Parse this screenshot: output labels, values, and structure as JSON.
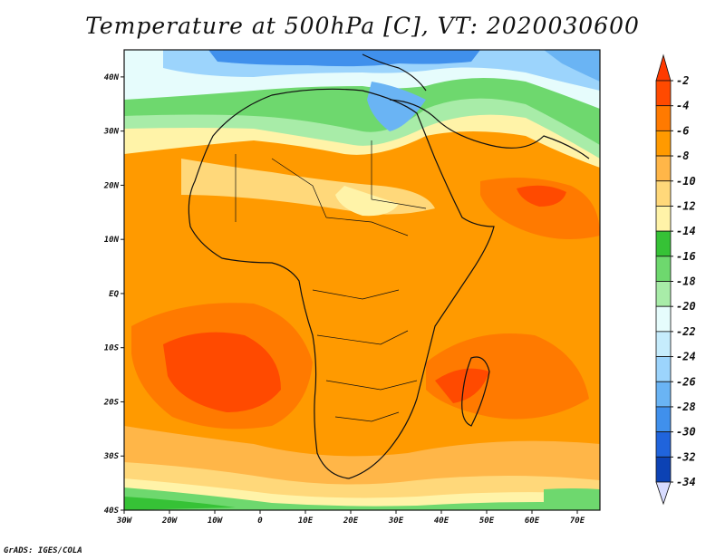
{
  "title": "Temperature at 500hPa [C], VT: 2020030600",
  "credit": "GrADS: IGES/COLA",
  "map": {
    "lon_ticks": [
      "30W",
      "20W",
      "10W",
      "0",
      "10E",
      "20E",
      "30E",
      "40E",
      "50E",
      "60E",
      "70E"
    ],
    "lat_ticks": [
      "40N",
      "30N",
      "20N",
      "10N",
      "EQ",
      "10S",
      "20S",
      "30S",
      "40S"
    ],
    "lon_range": [
      -30,
      75
    ],
    "lat_range": [
      -40,
      45
    ]
  },
  "colorbar": {
    "labels": [
      "-2",
      "-4",
      "-6",
      "-8",
      "-10",
      "-12",
      "-14",
      "-16",
      "-18",
      "-20",
      "-22",
      "-24",
      "-26",
      "-28",
      "-30",
      "-32",
      "-34"
    ],
    "colors": [
      "#ff4a00",
      "#ff7a00",
      "#ff9a00",
      "#ffb648",
      "#ffd87a",
      "#fff3a8",
      "#36c236",
      "#6ed86e",
      "#a8eca8",
      "#e6fcfc",
      "#c6ecfc",
      "#9cd4fc",
      "#6ab4f4",
      "#4090ec",
      "#2064dc",
      "#0c42b4",
      "#0a1e78"
    ]
  }
}
